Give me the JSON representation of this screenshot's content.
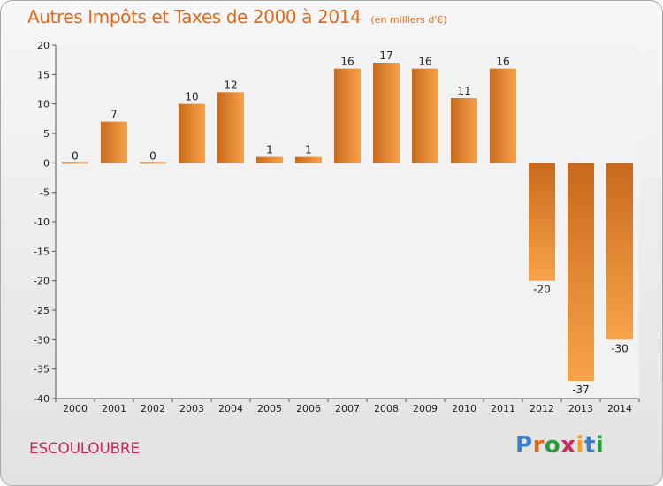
{
  "title": "Autres Impôts et Taxes de 2000 à 2014",
  "subtitle": "(en milliers d'€)",
  "commune": "ESCOULOUBRE",
  "logo": {
    "text": "Proxiti",
    "colors": [
      "#3a7dc9",
      "#e06a1c",
      "#2e9b3a",
      "#c8285a",
      "#f2a31b",
      "#3a7dc9",
      "#2e9b3a"
    ]
  },
  "colors": {
    "bar_light": "#f7a34a",
    "bar_dark": "#c8691d",
    "title": "#e06a1c",
    "commune": "#c8285a"
  },
  "chart_data": {
    "type": "bar",
    "categories": [
      "2000",
      "2001",
      "2002",
      "2003",
      "2004",
      "2005",
      "2006",
      "2007",
      "2008",
      "2009",
      "2010",
      "2011",
      "2012",
      "2013",
      "2014"
    ],
    "values": [
      0,
      7,
      0,
      10,
      12,
      1,
      1,
      16,
      17,
      16,
      11,
      16,
      -20,
      -37,
      -30
    ],
    "ylim": [
      -40,
      20
    ],
    "yticks": [
      20,
      15,
      10,
      5,
      0,
      -5,
      -10,
      -15,
      -20,
      -25,
      -30,
      -35,
      -40
    ],
    "grid": false,
    "title": "Autres Impôts et Taxes de 2000 à 2014",
    "xlabel": "",
    "ylabel": ""
  }
}
